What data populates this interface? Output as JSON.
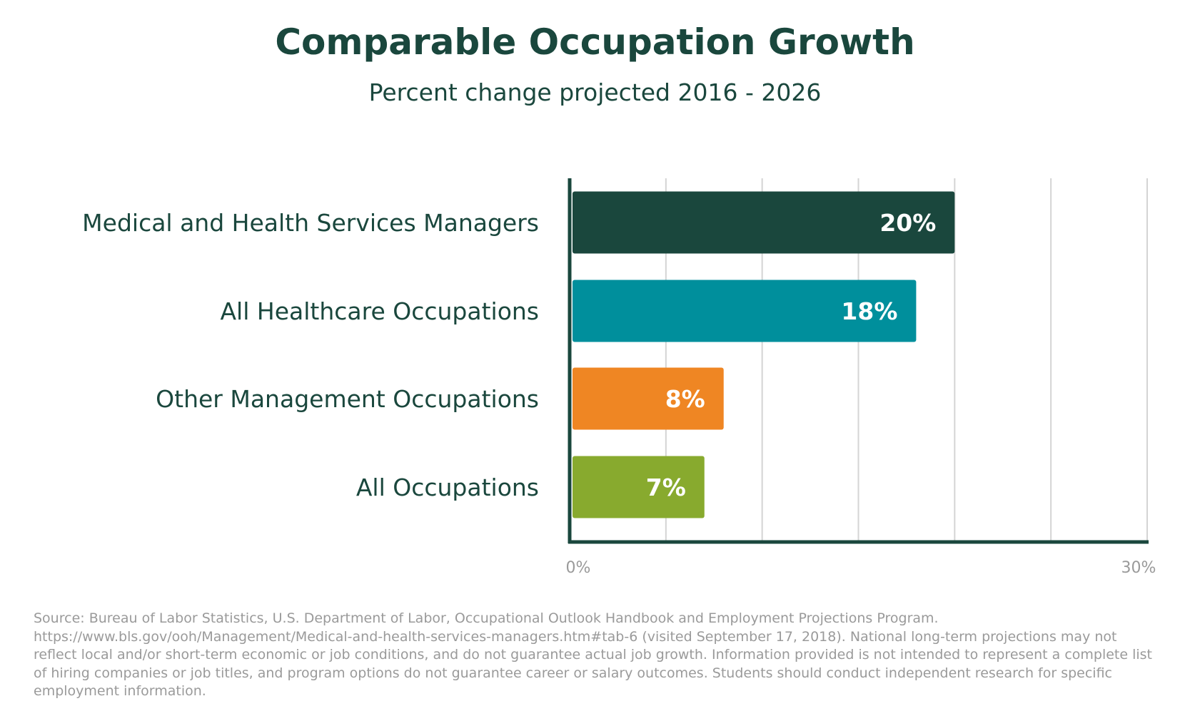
{
  "chart_data": {
    "type": "bar",
    "orientation": "horizontal",
    "title": "Comparable Occupation Growth",
    "subtitle": "Percent change projected 2016 - 2026",
    "categories": [
      "Medical and Health Services Managers",
      "All Healthcare Occupations",
      "Other Management Occupations",
      "All Occupations"
    ],
    "values": [
      20,
      18,
      8,
      7
    ],
    "value_labels": [
      "20%",
      "18%",
      "8%",
      "7%"
    ],
    "bar_colors": [
      "#1a473d",
      "#008f9c",
      "#ef8623",
      "#88aa2e"
    ],
    "xlim": [
      0,
      30
    ],
    "x_tick_labels": [
      "0%",
      "30%"
    ],
    "gridlines": 6,
    "grid": true
  },
  "colors": {
    "text_dark": "#1a473d",
    "axis": "#1a473d",
    "grid": "#d4d4d4",
    "muted": "#9a9a9a"
  },
  "source": "Source: Bureau of Labor Statistics, U.S. Department of Labor, Occupational Outlook Handbook and Employment Projections Program. https://www.bls.gov/ooh/Management/Medical-and-health-services-managers.htm#tab-6 (visited September 17, 2018). National long-term projections may not reflect local and/or short-term economic or job conditions, and do not guarantee actual job growth. Information provided is not intended to represent a complete list of hiring companies or job titles, and program options do not guarantee career or salary outcomes. Students should conduct independent research for specific employment information."
}
